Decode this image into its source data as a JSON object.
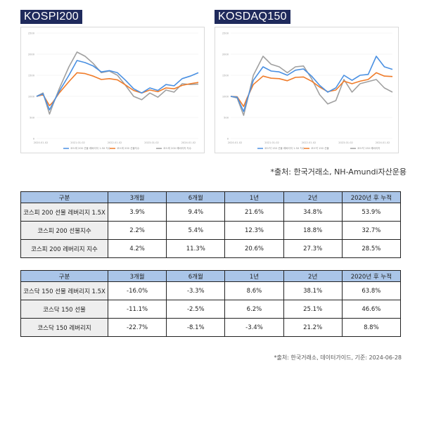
{
  "charts": [
    {
      "title": "KOSPI200",
      "y_ticks": [
        "2500",
        "2000",
        "1500",
        "1000",
        "500",
        "0"
      ],
      "x_ticks": [
        "2020.01.02",
        "2021.01.02",
        "2022.01.02",
        "2023.01.02",
        "2024.01.02"
      ],
      "legend": [
        "코스피 200 선물 레버리지 1.5X 지수",
        "코스피 200 선물지수",
        "코스피 200 레버리지 지수"
      ]
    },
    {
      "title": "KOSDAQ150",
      "y_ticks": [
        "2500",
        "2000",
        "1500",
        "1000",
        "500",
        "0"
      ],
      "x_ticks": [
        "2020.01.02",
        "2021.01.02",
        "2022.01.02",
        "2023.01.02",
        "2024.01.02"
      ],
      "legend": [
        "코스닥 150 선물 레버리지 1.5X 지수",
        "코스닥 150 선물",
        "코스닥 150 레버리지"
      ]
    }
  ],
  "chart_data": [
    {
      "type": "line",
      "title": "KOSPI200",
      "ylim": [
        0,
        2500
      ],
      "x": [
        0,
        0.04,
        0.08,
        0.1,
        0.14,
        0.2,
        0.25,
        0.3,
        0.35,
        0.4,
        0.45,
        0.5,
        0.55,
        0.6,
        0.65,
        0.7,
        0.75,
        0.8,
        0.85,
        0.9,
        0.95,
        1.0
      ],
      "series": [
        {
          "name": "코스피 200 선물 레버리지 1.5X 지수",
          "color": "#4a90e2",
          "values": [
            1000,
            1060,
            680,
            830,
            1120,
            1500,
            1850,
            1800,
            1720,
            1580,
            1610,
            1560,
            1380,
            1180,
            1080,
            1200,
            1140,
            1280,
            1250,
            1420,
            1480,
            1560
          ]
        },
        {
          "name": "코스피 200 선물지수",
          "color": "#f07c2a",
          "values": [
            1000,
            1040,
            780,
            860,
            1080,
            1350,
            1560,
            1540,
            1480,
            1400,
            1420,
            1390,
            1270,
            1140,
            1080,
            1150,
            1110,
            1200,
            1180,
            1260,
            1300,
            1330
          ]
        },
        {
          "name": "코스피 200 레버리지 지수",
          "color": "#a0a0a0",
          "values": [
            1000,
            1080,
            580,
            790,
            1180,
            1700,
            2050,
            1950,
            1780,
            1560,
            1600,
            1500,
            1260,
            1000,
            920,
            1080,
            980,
            1150,
            1100,
            1300,
            1280,
            1290
          ]
        }
      ]
    },
    {
      "type": "line",
      "title": "KOSDAQ150",
      "ylim": [
        0,
        2500
      ],
      "x": [
        0,
        0.04,
        0.08,
        0.1,
        0.14,
        0.2,
        0.25,
        0.3,
        0.35,
        0.4,
        0.45,
        0.5,
        0.55,
        0.6,
        0.65,
        0.7,
        0.75,
        0.8,
        0.85,
        0.9,
        0.95,
        1.0
      ],
      "series": [
        {
          "name": "코스닥 150 선물 레버리지 1.5X 지수",
          "color": "#4a90e2",
          "values": [
            1000,
            980,
            640,
            900,
            1380,
            1700,
            1600,
            1580,
            1500,
            1620,
            1650,
            1480,
            1260,
            1100,
            1200,
            1500,
            1380,
            1500,
            1520,
            1950,
            1700,
            1640
          ]
        },
        {
          "name": "코스닥 150 선물",
          "color": "#f07c2a",
          "values": [
            1000,
            990,
            760,
            950,
            1280,
            1480,
            1430,
            1420,
            1370,
            1450,
            1460,
            1360,
            1220,
            1110,
            1150,
            1360,
            1300,
            1360,
            1400,
            1560,
            1480,
            1470
          ]
        },
        {
          "name": "코스닥 150 레버리지",
          "color": "#a0a0a0",
          "values": [
            1000,
            960,
            550,
            860,
            1500,
            1950,
            1760,
            1700,
            1560,
            1700,
            1720,
            1420,
            1040,
            820,
            900,
            1400,
            1100,
            1300,
            1350,
            1400,
            1200,
            1100
          ]
        }
      ]
    }
  ],
  "source_note_1": "*출처: 한국거래소, NH-Amundi자산운용",
  "source_note_2": "*출처: 한국거래소, 데이터가이드, 기준: 2024-06-28",
  "tables": [
    {
      "headers": [
        "구분",
        "3개월",
        "6개월",
        "1년",
        "2년",
        "2020년 후 누적"
      ],
      "rows": [
        [
          "코스피 200 선물 레버리지 1.5X",
          "3.9%",
          "9.4%",
          "21.6%",
          "34.8%",
          "53.9%"
        ],
        [
          "코스피 200 선물지수",
          "2.2%",
          "5.4%",
          "12.3%",
          "18.8%",
          "32.7%"
        ],
        [
          "코스피 200 레버리지 지수",
          "4.2%",
          "11.3%",
          "20.6%",
          "27.3%",
          "28.5%"
        ]
      ]
    },
    {
      "headers": [
        "구분",
        "3개월",
        "6개월",
        "1년",
        "2년",
        "2020년 후 누적"
      ],
      "rows": [
        [
          "코스닥 150 선물 레버리지 1.5X",
          "-16.0%",
          "-3.3%",
          "8.6%",
          "38.1%",
          "63.8%"
        ],
        [
          "코스닥 150 선물",
          "-11.1%",
          "-2.5%",
          "6.2%",
          "25.1%",
          "46.6%"
        ],
        [
          "코스닥 150 레버리지",
          "-22.7%",
          "-8.1%",
          "-3.4%",
          "21.2%",
          "8.8%"
        ]
      ]
    }
  ]
}
